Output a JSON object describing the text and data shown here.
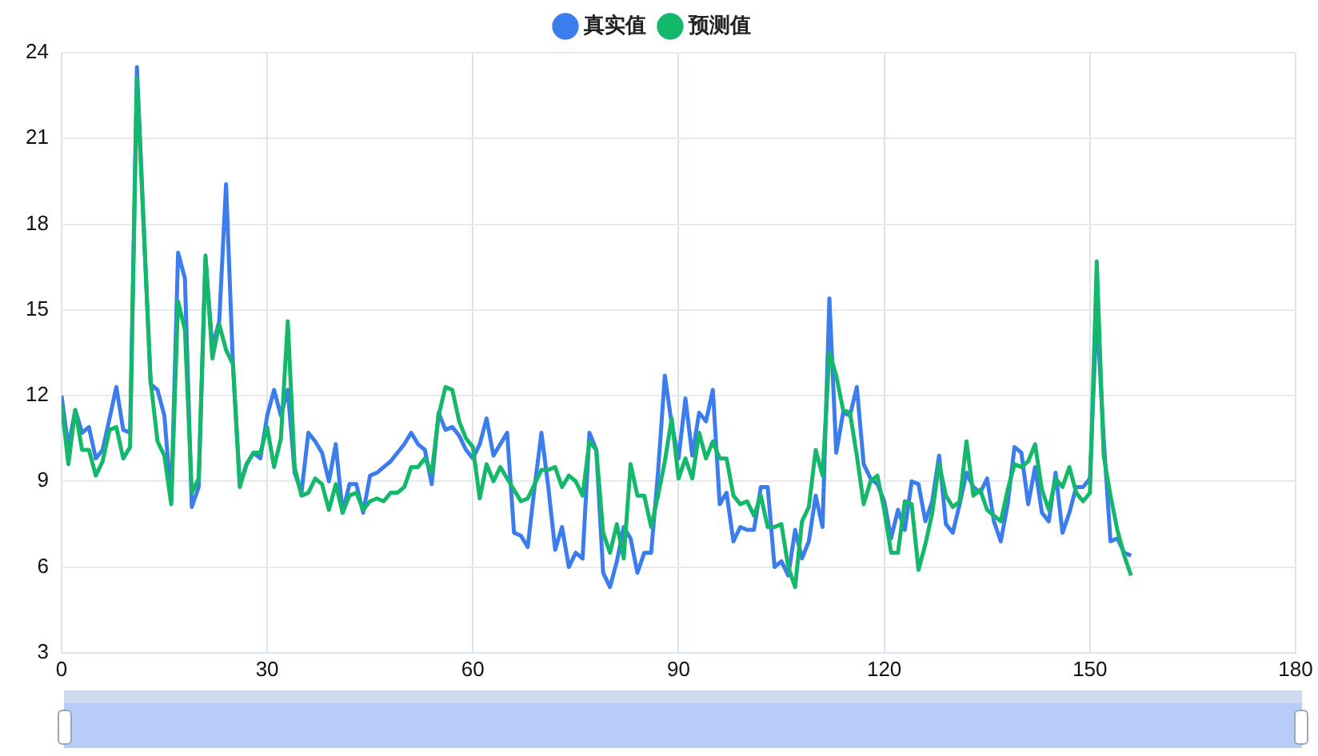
{
  "chart_data": {
    "type": "line",
    "x": [
      0,
      1,
      2,
      3,
      4,
      5,
      6,
      7,
      8,
      9,
      10,
      11,
      12,
      13,
      14,
      15,
      16,
      17,
      18,
      19,
      20,
      21,
      22,
      23,
      24,
      25,
      26,
      27,
      28,
      29,
      30,
      31,
      32,
      33,
      34,
      35,
      36,
      37,
      38,
      39,
      40,
      41,
      42,
      43,
      44,
      45,
      46,
      47,
      48,
      49,
      50,
      51,
      52,
      53,
      54,
      55,
      56,
      57,
      58,
      59,
      60,
      61,
      62,
      63,
      64,
      65,
      66,
      67,
      68,
      69,
      70,
      71,
      72,
      73,
      74,
      75,
      76,
      77,
      78,
      79,
      80,
      81,
      82,
      83,
      84,
      85,
      86,
      87,
      88,
      89,
      90,
      91,
      92,
      93,
      94,
      95,
      96,
      97,
      98,
      99,
      100,
      101,
      102,
      103,
      104,
      105,
      106,
      107,
      108,
      109,
      110,
      111,
      112,
      113,
      114,
      115,
      116,
      117,
      118,
      119,
      120,
      121,
      122,
      123,
      124,
      125,
      126,
      127,
      128,
      129,
      130,
      131,
      132,
      133,
      134,
      135,
      136,
      137,
      138,
      139,
      140,
      141,
      142,
      143,
      144,
      145,
      146,
      147,
      148,
      149,
      150,
      151,
      152,
      153,
      154,
      155,
      156
    ],
    "series": [
      {
        "name": "真实值",
        "color": "#3b7ded",
        "values": [
          12.0,
          10.2,
          11.5,
          10.7,
          10.9,
          9.8,
          10.1,
          11.2,
          12.3,
          10.8,
          10.7,
          23.5,
          17.9,
          12.4,
          12.2,
          11.3,
          8.3,
          17.0,
          16.1,
          8.1,
          8.8,
          16.8,
          13.7,
          14.6,
          19.4,
          13.1,
          8.9,
          9.6,
          10.0,
          9.8,
          11.3,
          12.2,
          11.3,
          12.2,
          9.3,
          8.6,
          10.7,
          10.4,
          10.0,
          9.0,
          10.3,
          7.9,
          8.9,
          8.9,
          7.9,
          9.2,
          9.3,
          9.5,
          9.7,
          10.0,
          10.3,
          10.7,
          10.3,
          10.1,
          8.9,
          11.4,
          10.8,
          10.9,
          10.6,
          10.1,
          9.8,
          10.3,
          11.2,
          9.9,
          10.3,
          10.7,
          7.2,
          7.1,
          6.7,
          8.8,
          10.7,
          8.8,
          6.6,
          7.4,
          6.0,
          6.5,
          6.3,
          10.7,
          10.1,
          5.8,
          5.3,
          6.2,
          7.4,
          7.0,
          5.8,
          6.5,
          6.5,
          9.3,
          12.7,
          11.0,
          9.8,
          11.9,
          9.9,
          11.4,
          11.1,
          12.2,
          8.2,
          8.6,
          6.9,
          7.4,
          7.3,
          7.3,
          8.8,
          8.8,
          6.0,
          6.2,
          5.7,
          7.3,
          6.3,
          6.9,
          8.5,
          7.4,
          15.4,
          10.0,
          11.4,
          11.3,
          12.3,
          9.6,
          9.1,
          8.9,
          8.3,
          7.0,
          8.0,
          7.3,
          9.0,
          8.9,
          7.6,
          8.3,
          9.9,
          7.5,
          7.2,
          8.2,
          9.3,
          8.8,
          8.6,
          9.1,
          7.6,
          6.9,
          8.2,
          10.2,
          10.0,
          8.2,
          9.5,
          7.9,
          7.6,
          9.3,
          7.2,
          7.9,
          8.8,
          8.8,
          9.1,
          15.0,
          10.5,
          6.9,
          7.0,
          6.5,
          6.4
        ]
      },
      {
        "name": "预测值",
        "color": "#14b86a",
        "values": [
          11.7,
          9.6,
          11.5,
          10.1,
          10.1,
          9.2,
          9.7,
          10.8,
          10.9,
          9.8,
          10.2,
          23.1,
          17.8,
          12.5,
          10.4,
          9.9,
          8.2,
          15.3,
          14.3,
          8.6,
          9.1,
          16.9,
          13.3,
          14.5,
          13.6,
          13.1,
          8.8,
          9.6,
          10.0,
          10.0,
          10.9,
          9.5,
          10.5,
          14.6,
          9.5,
          8.5,
          8.6,
          9.1,
          8.9,
          8.0,
          8.9,
          7.9,
          8.5,
          8.6,
          8.0,
          8.3,
          8.4,
          8.3,
          8.6,
          8.6,
          8.8,
          9.5,
          9.5,
          9.8,
          9.3,
          11.3,
          12.3,
          12.2,
          11.1,
          10.5,
          10.2,
          8.4,
          9.6,
          9.0,
          9.5,
          9.1,
          8.7,
          8.3,
          8.4,
          8.9,
          9.4,
          9.4,
          9.5,
          8.8,
          9.2,
          9.0,
          8.5,
          10.4,
          10.1,
          7.2,
          6.5,
          7.5,
          6.3,
          9.6,
          8.5,
          8.5,
          7.4,
          8.5,
          9.7,
          11.2,
          9.1,
          9.8,
          9.1,
          10.7,
          9.8,
          10.4,
          9.8,
          9.8,
          8.5,
          8.2,
          8.3,
          7.8,
          8.5,
          7.4,
          7.4,
          7.5,
          6.0,
          5.3,
          7.6,
          8.1,
          10.1,
          9.2,
          13.5,
          12.7,
          11.5,
          11.4,
          9.9,
          8.2,
          9.0,
          9.2,
          8.0,
          6.5,
          6.5,
          8.3,
          8.2,
          5.9,
          6.8,
          7.9,
          9.6,
          8.5,
          8.1,
          8.3,
          10.4,
          8.5,
          8.7,
          8.0,
          7.8,
          7.6,
          8.7,
          9.6,
          9.5,
          9.7,
          10.3,
          8.7,
          8.0,
          9.1,
          8.8,
          9.5,
          8.6,
          8.3,
          8.6,
          16.7,
          9.9,
          8.5,
          7.3,
          6.4,
          5.7
        ]
      }
    ],
    "xlim": [
      0,
      180
    ],
    "xticks": [
      0,
      30,
      60,
      90,
      120,
      150,
      180
    ],
    "ylim": [
      3,
      24
    ],
    "yticks": [
      3,
      6,
      9,
      12,
      15,
      18,
      21,
      24
    ],
    "grid": true,
    "legend": "top",
    "marker": "none",
    "line_style": "solid"
  }
}
